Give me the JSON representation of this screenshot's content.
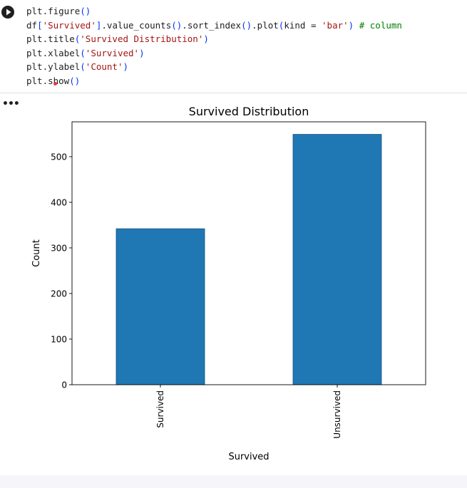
{
  "cell": {
    "run_icon": "play-icon",
    "code_lines": [
      [
        {
          "t": "plt.figure",
          "c": "fn"
        },
        {
          "t": "()",
          "c": "p"
        }
      ],
      [
        {
          "t": "df",
          "c": "fn"
        },
        {
          "t": "[",
          "c": "p"
        },
        {
          "t": "'Survived'",
          "c": "str"
        },
        {
          "t": "]",
          "c": "p"
        },
        {
          "t": ".value_counts",
          "c": "fn"
        },
        {
          "t": "()",
          "c": "p"
        },
        {
          "t": ".sort_index",
          "c": "fn"
        },
        {
          "t": "()",
          "c": "p"
        },
        {
          "t": ".plot",
          "c": "fn"
        },
        {
          "t": "(",
          "c": "p"
        },
        {
          "t": "kind = ",
          "c": "fn"
        },
        {
          "t": "'bar'",
          "c": "str"
        },
        {
          "t": ")",
          "c": "p"
        },
        {
          "t": " # column",
          "c": "cmt"
        }
      ],
      [
        {
          "t": "plt.title",
          "c": "fn"
        },
        {
          "t": "(",
          "c": "p"
        },
        {
          "t": "'Survived Distribution'",
          "c": "str"
        },
        {
          "t": ")",
          "c": "p"
        }
      ],
      [
        {
          "t": "plt.xlabel",
          "c": "fn"
        },
        {
          "t": "(",
          "c": "p"
        },
        {
          "t": "'Survived'",
          "c": "str"
        },
        {
          "t": ")",
          "c": "p"
        }
      ],
      [
        {
          "t": "plt.ylabel",
          "c": "fn"
        },
        {
          "t": "(",
          "c": "p"
        },
        {
          "t": "'Count'",
          "c": "str"
        },
        {
          "t": ")",
          "c": "p"
        }
      ],
      [
        {
          "t": "plt.show",
          "c": "fn"
        },
        {
          "t": "()",
          "c": "p"
        }
      ]
    ]
  },
  "output": {
    "menu_label": "•••",
    "menu_icon": "more-horizontal-icon"
  },
  "chart_data": {
    "type": "bar",
    "title": "Survived Distribution",
    "xlabel": "Survived",
    "ylabel": "Count",
    "categories": [
      "Survived",
      "Unsurvived"
    ],
    "values": [
      342,
      549
    ],
    "ylim": [
      0,
      576.45
    ],
    "yticks": [
      0,
      100,
      200,
      300,
      400,
      500
    ],
    "bar_color": "#1f77b4",
    "bar_edge_color": "#16507e",
    "grid": false,
    "legend": "none"
  }
}
